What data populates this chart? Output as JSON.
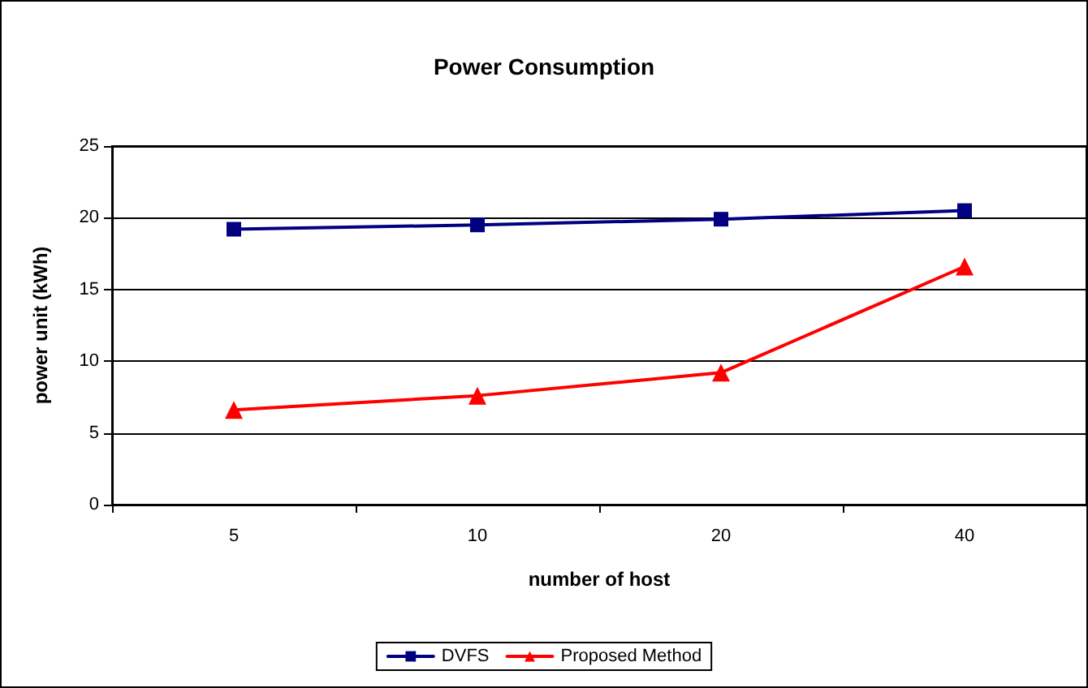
{
  "chart_data": {
    "type": "line",
    "title": "Power Consumption",
    "xlabel": "number of host",
    "ylabel": "power unit (kWh)",
    "categories": [
      "5",
      "10",
      "20",
      "40"
    ],
    "series": [
      {
        "name": "DVFS",
        "color": "#000080",
        "marker": "square",
        "values": [
          19.2,
          19.5,
          19.9,
          20.5
        ]
      },
      {
        "name": "Proposed Method",
        "color": "#ff0000",
        "marker": "triangle",
        "values": [
          6.6,
          7.6,
          9.2,
          16.6
        ]
      }
    ],
    "ylim": [
      0,
      25
    ],
    "yticks": [
      0,
      5,
      10,
      15,
      20,
      25
    ],
    "grid": "y",
    "legend": "bottom"
  }
}
